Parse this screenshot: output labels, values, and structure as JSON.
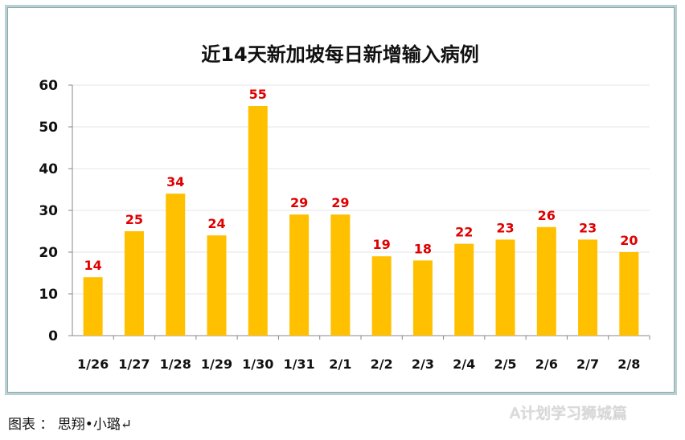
{
  "chart_data": {
    "type": "bar",
    "title": "近14天新加坡每日新增输入病例",
    "categories": [
      "1/26",
      "1/27",
      "1/28",
      "1/29",
      "1/30",
      "1/31",
      "2/1",
      "2/2",
      "2/3",
      "2/4",
      "2/5",
      "2/6",
      "2/7",
      "2/8"
    ],
    "values": [
      14,
      25,
      34,
      24,
      55,
      29,
      29,
      19,
      18,
      22,
      23,
      26,
      23,
      20
    ],
    "ylim": [
      0,
      60
    ],
    "yticks": [
      0,
      10,
      20,
      30,
      40,
      50,
      60
    ],
    "xlabel": "",
    "ylabel": "",
    "grid": true,
    "bar_color": "#FFC000",
    "label_color": "#E00000"
  },
  "caption": "图表 ： 思翔•小璐↵",
  "watermark": "A计划学习狮城篇"
}
